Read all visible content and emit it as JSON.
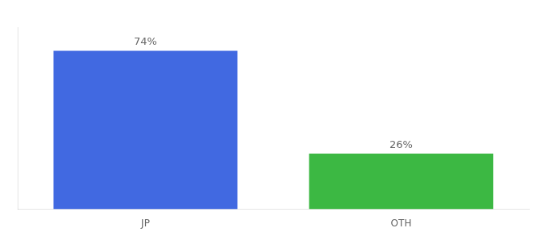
{
  "chart_data": {
    "type": "bar",
    "categories": [
      "JP",
      "OTH"
    ],
    "values": [
      74,
      26
    ],
    "value_labels": [
      "74%",
      "26%"
    ],
    "colors": [
      "#4169e1",
      "#3cb843"
    ],
    "ylim": [
      0,
      85
    ],
    "data_labels": true,
    "tick_labels": "x",
    "grid": false
  }
}
